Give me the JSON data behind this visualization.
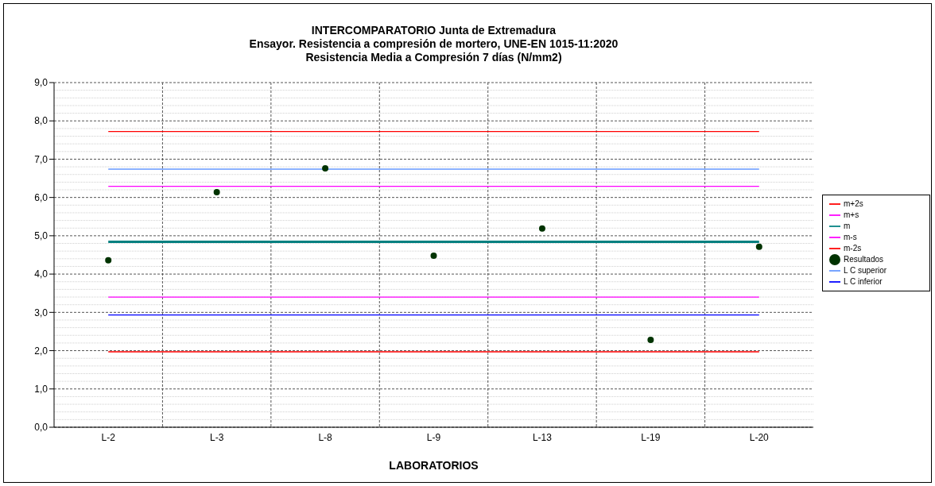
{
  "chart_data": {
    "type": "line",
    "title": "INTERCOMPARATORIO Junta de Extremadura\nEnsayor. Resistencia a compresión de mortero, UNE-EN 1015-11:2020\nResistencia Media a Compresión 7 días (N/mm2)",
    "xlabel": "LABORATORIOS",
    "categories": [
      "L-2",
      "L-3",
      "L-8",
      "L-9",
      "L-13",
      "L-19",
      "L-20"
    ],
    "series": [
      {
        "name": "m+2s",
        "color": "#ff0000",
        "values": [
          7.72,
          7.72,
          7.72,
          7.72,
          7.72,
          7.72,
          7.72
        ]
      },
      {
        "name": "m+s",
        "color": "#ff00ff",
        "values": [
          6.29,
          6.29,
          6.29,
          6.29,
          6.29,
          6.29,
          6.29
        ]
      },
      {
        "name": "m",
        "color": "#008080",
        "values": [
          4.84,
          4.84,
          4.84,
          4.84,
          4.84,
          4.84,
          4.84
        ]
      },
      {
        "name": "m-s",
        "color": "#ff00ff",
        "values": [
          3.4,
          3.4,
          3.4,
          3.4,
          3.4,
          3.4,
          3.4
        ]
      },
      {
        "name": "m-2s",
        "color": "#ff0000",
        "values": [
          1.97,
          1.97,
          1.97,
          1.97,
          1.97,
          1.97,
          1.97
        ]
      },
      {
        "name": "Resultados",
        "type": "scatter",
        "color": "#003300",
        "values": [
          4.36,
          6.14,
          6.76,
          4.48,
          5.19,
          2.28,
          4.71
        ]
      },
      {
        "name": "L C superior",
        "color": "#6699ff",
        "values": [
          6.74,
          6.74,
          6.74,
          6.74,
          6.74,
          6.74,
          6.74
        ]
      },
      {
        "name": "L C inferior",
        "color": "#0000ff",
        "values": [
          2.93,
          2.93,
          2.93,
          2.93,
          2.93,
          2.93,
          2.93
        ]
      }
    ],
    "ylim": [
      0,
      9
    ],
    "yticks": [
      {
        "value": 0,
        "label": "0,0"
      },
      {
        "value": 1,
        "label": "1,0"
      },
      {
        "value": 2,
        "label": "2,0"
      },
      {
        "value": 3,
        "label": "3,0"
      },
      {
        "value": 4,
        "label": "4,0"
      },
      {
        "value": 5,
        "label": "5,0"
      },
      {
        "value": 6,
        "label": "6,0"
      },
      {
        "value": 7,
        "label": "7,0"
      },
      {
        "value": 8,
        "label": "8,0"
      },
      {
        "value": 9,
        "label": "9,0"
      }
    ],
    "grid": true,
    "legend": "right"
  }
}
